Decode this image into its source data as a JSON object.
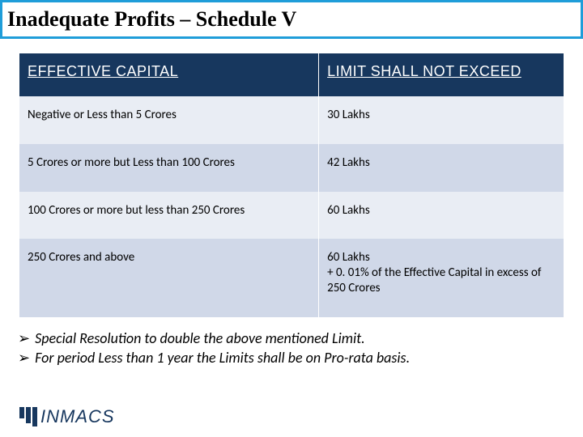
{
  "title": "Inadequate Profits – Schedule V",
  "table": {
    "headers": [
      "EFFECTIVE CAPITAL",
      "LIMIT SHALL NOT EXCEED"
    ],
    "rows": [
      [
        "Negative or Less than 5 Crores",
        "30 Lakhs"
      ],
      [
        "5 Crores or more  but Less than 100 Crores",
        "42 Lakhs"
      ],
      [
        "100 Crores or more but less than 250 Crores",
        "60 Lakhs"
      ],
      [
        "250 Crores and above",
        "60 Lakhs\n+ 0. 01% of the Effective Capital in excess of 250 Crores"
      ]
    ],
    "header_bg": "#17375e",
    "header_color": "#ffffff",
    "row_bg_a": "#e9edf4",
    "row_bg_b": "#d0d8e8",
    "body_fontsize": 15,
    "header_fontsize": 18
  },
  "notes": [
    "Special Resolution to double the above mentioned Limit.",
    "For period Less than 1 year the Limits shall be on Pro-rata basis."
  ],
  "bullet": "➢",
  "logo_text": "INMACS",
  "colors": {
    "title_border": "#1f9dd9",
    "brand": "#17375e"
  }
}
